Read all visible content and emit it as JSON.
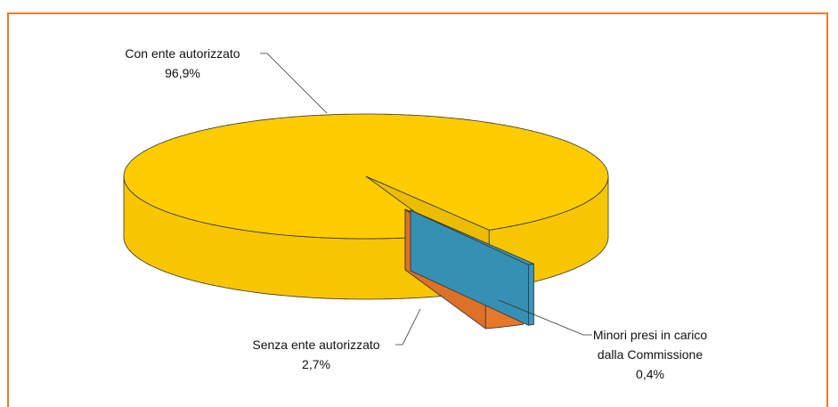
{
  "chart_data": {
    "type": "pie3d",
    "categories": [
      "Con ente autorizzato",
      "Senza ente autorizzato",
      "Minori presi in carico dalla Commissione"
    ],
    "values": [
      96.9,
      2.7,
      0.4
    ],
    "value_labels": [
      "96,9%",
      "2,7%",
      "0,4%"
    ],
    "colors": [
      "#ffcc00",
      "#f07b2a",
      "#3a9cc4"
    ]
  }
}
